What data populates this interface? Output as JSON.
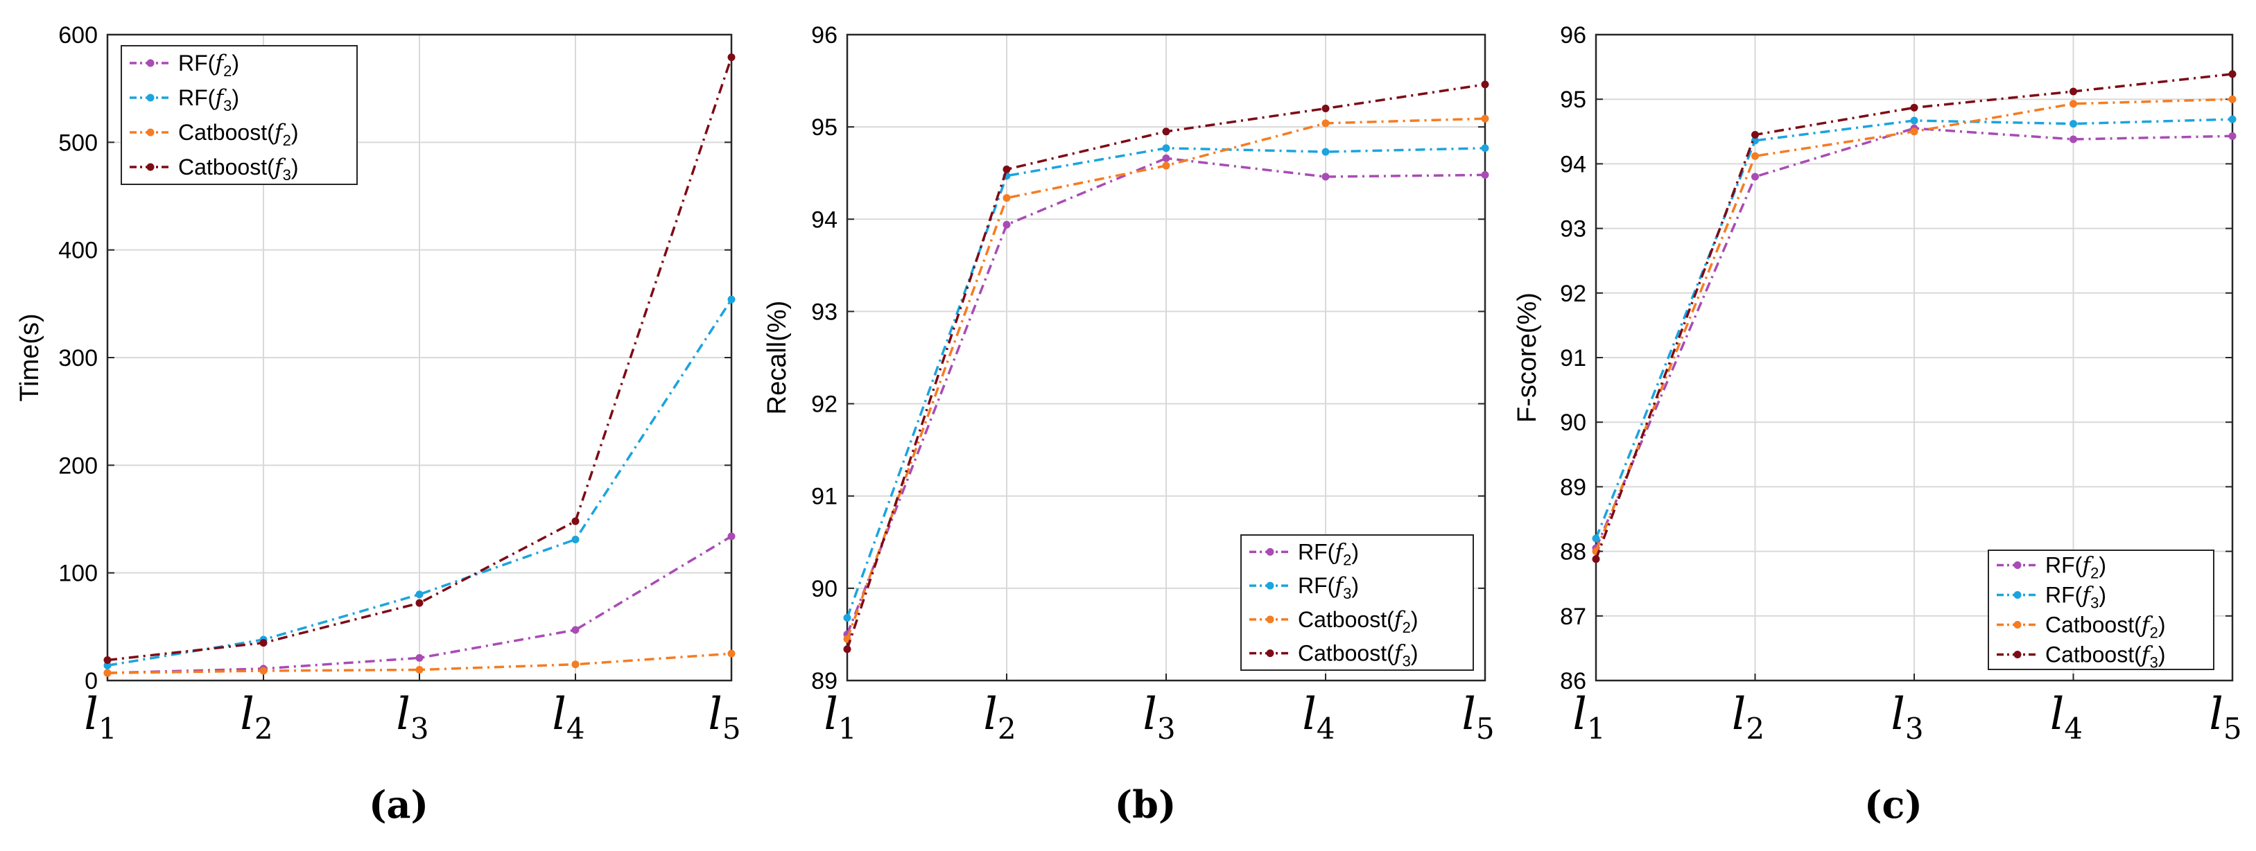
{
  "chart_data": [
    {
      "type": "line",
      "caption": "(a)",
      "ylabel": "Time(s)",
      "ylim": [
        0,
        600
      ],
      "yticks": [
        0,
        100,
        200,
        300,
        400,
        500,
        600
      ],
      "categories": [
        {
          "base": "l",
          "sub": "1"
        },
        {
          "base": "l",
          "sub": "2"
        },
        {
          "base": "l",
          "sub": "3"
        },
        {
          "base": "l",
          "sub": "4"
        },
        {
          "base": "l",
          "sub": "5"
        }
      ],
      "legend_position": "top-left",
      "series": [
        {
          "label": "RF(",
          "sub_symbol": "f",
          "sub_index": "2",
          "close": ")",
          "color": "#a94bb5",
          "values": [
            7,
            11,
            21,
            47,
            134
          ]
        },
        {
          "label": "RF(",
          "sub_symbol": "f",
          "sub_index": "3",
          "close": ")",
          "color": "#1ba4de",
          "values": [
            14,
            38,
            80,
            131,
            354
          ]
        },
        {
          "label": "Catboost(",
          "sub_symbol": "f",
          "sub_index": "2",
          "close": ")",
          "color": "#f57c21",
          "values": [
            7,
            9,
            10,
            15,
            25
          ]
        },
        {
          "label": "Catboost(",
          "sub_symbol": "f",
          "sub_index": "3",
          "close": ")",
          "color": "#7d0b16",
          "values": [
            19,
            35,
            72,
            148,
            579
          ]
        }
      ]
    },
    {
      "type": "line",
      "caption": "(b)",
      "ylabel": "Recall(%)",
      "ylim": [
        89,
        96
      ],
      "yticks": [
        89,
        90,
        91,
        92,
        93,
        94,
        95,
        96
      ],
      "categories": [
        {
          "base": "l",
          "sub": "1"
        },
        {
          "base": "l",
          "sub": "2"
        },
        {
          "base": "l",
          "sub": "3"
        },
        {
          "base": "l",
          "sub": "4"
        },
        {
          "base": "l",
          "sub": "5"
        }
      ],
      "legend_position": "bottom-right",
      "series": [
        {
          "label": "RF(",
          "sub_symbol": "f",
          "sub_index": "2",
          "close": ")",
          "color": "#a94bb5",
          "values": [
            89.5,
            93.94,
            94.66,
            94.46,
            94.48
          ]
        },
        {
          "label": "RF(",
          "sub_symbol": "f",
          "sub_index": "3",
          "close": ")",
          "color": "#1ba4de",
          "values": [
            89.68,
            94.47,
            94.77,
            94.73,
            94.77
          ]
        },
        {
          "label": "Catboost(",
          "sub_symbol": "f",
          "sub_index": "2",
          "close": ")",
          "color": "#f57c21",
          "values": [
            89.45,
            94.23,
            94.58,
            95.04,
            95.09
          ]
        },
        {
          "label": "Catboost(",
          "sub_symbol": "f",
          "sub_index": "3",
          "close": ")",
          "color": "#7d0b16",
          "values": [
            89.34,
            94.54,
            94.95,
            95.2,
            95.46
          ]
        }
      ]
    },
    {
      "type": "line",
      "caption": "(c)",
      "ylabel": "F-score(%)",
      "ylim": [
        86,
        96
      ],
      "yticks": [
        86,
        87,
        88,
        89,
        90,
        91,
        92,
        93,
        94,
        95,
        96
      ],
      "categories": [
        {
          "base": "l",
          "sub": "1"
        },
        {
          "base": "l",
          "sub": "2"
        },
        {
          "base": "l",
          "sub": "3"
        },
        {
          "base": "l",
          "sub": "4"
        },
        {
          "base": "l",
          "sub": "5"
        }
      ],
      "legend_position": "bottom-right",
      "series": [
        {
          "label": "RF(",
          "sub_symbol": "f",
          "sub_index": "2",
          "close": ")",
          "color": "#a94bb5",
          "values": [
            88.05,
            93.8,
            94.55,
            94.38,
            94.43
          ]
        },
        {
          "label": "RF(",
          "sub_symbol": "f",
          "sub_index": "3",
          "close": ")",
          "color": "#1ba4de",
          "values": [
            88.2,
            94.36,
            94.67,
            94.62,
            94.69
          ]
        },
        {
          "label": "Catboost(",
          "sub_symbol": "f",
          "sub_index": "2",
          "close": ")",
          "color": "#f57c21",
          "values": [
            88.0,
            94.12,
            94.5,
            94.93,
            95.0
          ]
        },
        {
          "label": "Catboost(",
          "sub_symbol": "f",
          "sub_index": "3",
          "close": ")",
          "color": "#7d0b16",
          "values": [
            87.88,
            94.45,
            94.87,
            95.12,
            95.39
          ]
        }
      ]
    }
  ]
}
